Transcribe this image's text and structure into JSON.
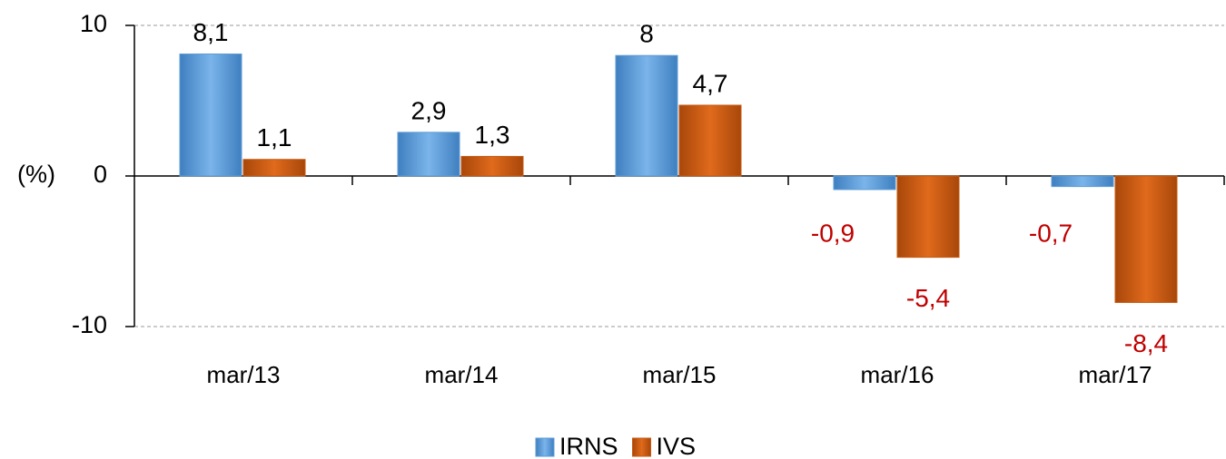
{
  "chart_data": {
    "type": "bar",
    "y_label": "(%)",
    "categories": [
      "mar/13",
      "mar/14",
      "mar/15",
      "mar/16",
      "mar/17"
    ],
    "series": [
      {
        "name": "IRNS",
        "color": "#5b9bd5",
        "values": [
          8.1,
          2.9,
          8,
          -0.9,
          -0.7
        ],
        "value_labels": [
          "8,1",
          "2,9",
          "8",
          "-0,9",
          "-0,7"
        ]
      },
      {
        "name": "IVS",
        "color": "#c55a11",
        "values": [
          1.1,
          1.3,
          4.7,
          -5.4,
          -8.4
        ],
        "value_labels": [
          "1,1",
          "1,3",
          "4,7",
          "-5,4",
          "-8,4"
        ]
      }
    ],
    "negative_label_color": "#c00000",
    "ylim": [
      -10,
      10
    ],
    "yticks": [
      -10,
      0,
      10
    ],
    "grid": true,
    "legend": "bottom"
  }
}
